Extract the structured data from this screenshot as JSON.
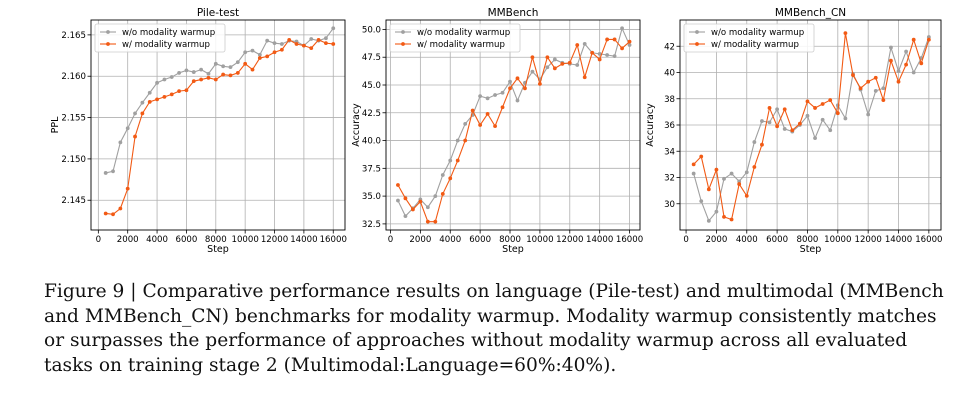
{
  "chart_data": [
    {
      "type": "line",
      "title": "Pile-test",
      "xlabel": "Step",
      "ylabel": "PPL",
      "xlim": [
        -500,
        16800
      ],
      "ylim": [
        2.1414,
        2.1668
      ],
      "xticks": [
        0,
        2000,
        4000,
        6000,
        8000,
        10000,
        12000,
        14000,
        16000
      ],
      "yticks": [
        2.145,
        2.15,
        2.155,
        2.16,
        2.165
      ],
      "ytick_labels": [
        "2.145",
        "2.150",
        "2.155",
        "2.160",
        "2.165"
      ],
      "grid": true,
      "legend": "upper-left",
      "x": [
        500,
        1000,
        1500,
        2000,
        2500,
        3000,
        3500,
        4000,
        4500,
        5000,
        5500,
        6000,
        6500,
        7000,
        7500,
        8000,
        8500,
        9000,
        9500,
        10000,
        10500,
        11000,
        11500,
        12000,
        12500,
        13000,
        13500,
        14000,
        14500,
        15000,
        15500,
        16000
      ],
      "series": [
        {
          "name": "w/o modality warmup",
          "color": "#a0a0a0",
          "values": [
            2.1483,
            2.1485,
            2.152,
            2.1537,
            2.1555,
            2.1568,
            2.158,
            2.1592,
            2.1596,
            2.1599,
            2.1604,
            2.1607,
            2.1605,
            2.1608,
            2.1603,
            2.1615,
            2.1612,
            2.1611,
            2.1617,
            2.1629,
            2.1631,
            2.1626,
            2.1643,
            2.164,
            2.1639,
            2.1643,
            2.1642,
            2.1637,
            2.1645,
            2.1643,
            2.1646,
            2.1658
          ]
        },
        {
          "name": "w/ modality warmup",
          "color": "#f25a14",
          "values": [
            2.1434,
            2.1433,
            2.144,
            2.1464,
            2.1527,
            2.1555,
            2.1569,
            2.1572,
            2.1575,
            2.1578,
            2.1582,
            2.1583,
            2.1594,
            2.1596,
            2.1598,
            2.1596,
            2.1602,
            2.1601,
            2.1604,
            2.1615,
            2.1608,
            2.1622,
            2.1624,
            2.1629,
            2.1632,
            2.1644,
            2.1639,
            2.1637,
            2.1634,
            2.1644,
            2.164,
            2.1639
          ]
        }
      ]
    },
    {
      "type": "line",
      "title": "MMBench",
      "xlabel": "Step",
      "ylabel": "Accuracy",
      "xlim": [
        -300,
        16700
      ],
      "ylim": [
        31.95,
        50.85
      ],
      "xticks": [
        0,
        2000,
        4000,
        6000,
        8000,
        10000,
        12000,
        14000,
        16000
      ],
      "yticks": [
        32.5,
        35.0,
        37.5,
        40.0,
        42.5,
        45.0,
        47.5,
        50.0
      ],
      "ytick_labels": [
        "32.5",
        "35.0",
        "37.5",
        "40.0",
        "42.5",
        "45.0",
        "47.5",
        "50.0"
      ],
      "grid": true,
      "legend": "upper-left",
      "x": [
        500,
        1000,
        1500,
        2000,
        2500,
        3000,
        3500,
        4000,
        4500,
        5000,
        5500,
        6000,
        6500,
        7000,
        7500,
        8000,
        8500,
        9000,
        9500,
        10000,
        10500,
        11000,
        11500,
        12000,
        12500,
        13000,
        13500,
        14000,
        14500,
        15000,
        15500,
        16000
      ],
      "series": [
        {
          "name": "w/o modality warmup",
          "color": "#a0a0a0",
          "values": [
            34.6,
            33.2,
            33.9,
            34.7,
            34.0,
            35.0,
            36.9,
            38.2,
            40.0,
            41.5,
            42.3,
            44.0,
            43.8,
            44.1,
            44.3,
            45.3,
            43.6,
            45.2,
            46.2,
            45.5,
            46.6,
            47.3,
            47.0,
            46.9,
            46.8,
            48.7,
            47.9,
            47.8,
            47.7,
            47.6,
            50.1,
            48.6
          ]
        },
        {
          "name": "w/ modality warmup",
          "color": "#f25a14",
          "values": [
            36.0,
            34.8,
            33.8,
            34.5,
            32.7,
            32.7,
            35.2,
            36.6,
            38.2,
            40.0,
            42.7,
            41.4,
            42.4,
            41.3,
            43.0,
            44.7,
            45.6,
            44.7,
            47.5,
            45.1,
            47.5,
            46.5,
            46.9,
            47.0,
            48.6,
            45.7,
            47.9,
            47.3,
            49.1,
            49.1,
            48.3,
            48.9
          ]
        }
      ]
    },
    {
      "type": "line",
      "title": "MMBench_CN",
      "xlabel": "Step",
      "ylabel": "Accuracy",
      "xlim": [
        -400,
        16800
      ],
      "ylim": [
        28.0,
        44.0
      ],
      "xticks": [
        0,
        2000,
        4000,
        6000,
        8000,
        10000,
        12000,
        14000,
        16000
      ],
      "yticks": [
        30,
        32,
        34,
        36,
        38,
        40,
        42
      ],
      "ytick_labels": [
        "30",
        "32",
        "34",
        "36",
        "38",
        "40",
        "42"
      ],
      "grid": true,
      "legend": "upper-left",
      "x": [
        500,
        1000,
        1500,
        2000,
        2500,
        3000,
        3500,
        4000,
        4500,
        5000,
        5500,
        6000,
        6500,
        7000,
        7500,
        8000,
        8500,
        9000,
        9500,
        10000,
        10500,
        11000,
        11500,
        12000,
        12500,
        13000,
        13500,
        14000,
        14500,
        15000,
        15500,
        16000
      ],
      "series": [
        {
          "name": "w/o modality warmup",
          "color": "#a0a0a0",
          "values": [
            32.3,
            30.2,
            28.7,
            29.4,
            31.9,
            32.3,
            31.7,
            32.4,
            34.7,
            36.3,
            36.2,
            37.2,
            35.7,
            35.5,
            36.0,
            36.7,
            35.0,
            36.4,
            35.6,
            37.5,
            36.5,
            39.9,
            38.7,
            36.8,
            38.6,
            38.8,
            41.9,
            40.1,
            41.6,
            40.0,
            41.1,
            42.7
          ]
        },
        {
          "name": "w/ modality warmup",
          "color": "#f25a14",
          "values": [
            33.0,
            33.6,
            31.1,
            32.6,
            29.0,
            28.8,
            31.5,
            30.6,
            32.8,
            34.5,
            37.3,
            35.9,
            37.2,
            35.6,
            36.1,
            37.8,
            37.3,
            37.6,
            37.9,
            36.9,
            43.0,
            39.8,
            38.8,
            39.3,
            39.6,
            37.9,
            40.9,
            39.3,
            40.6,
            42.5,
            40.7,
            42.5
          ]
        }
      ]
    }
  ],
  "caption": "Figure 9 | Comparative performance results on language (Pile-test) and multimodal (MMBench and MMBench_CN) benchmarks for modality warmup. Modality warmup consistently matches or surpasses the performance of approaches without modality warmup across all evaluated tasks on training stage 2 (Multimodal:Language=60%:40%)."
}
